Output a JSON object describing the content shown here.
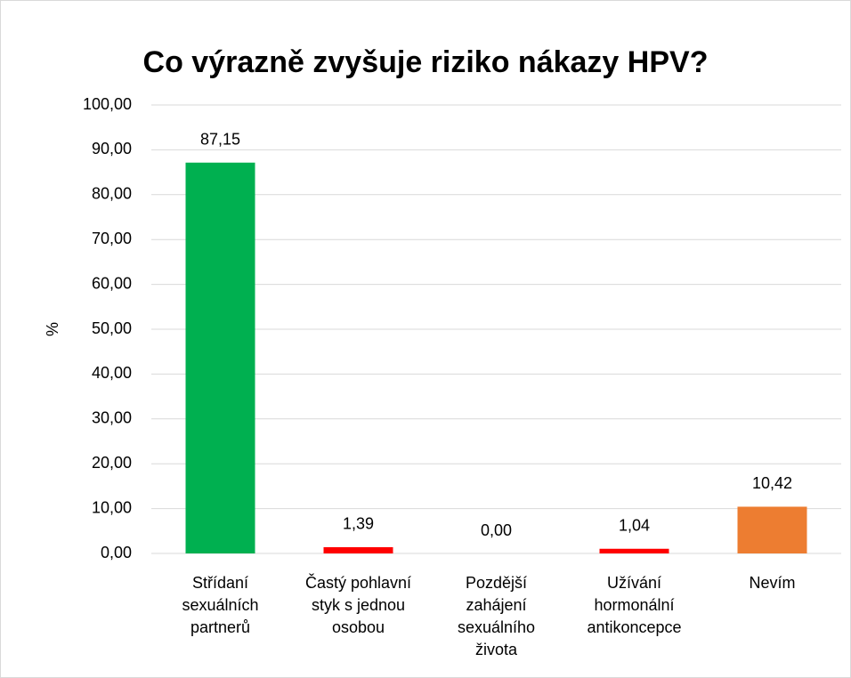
{
  "chart_data": {
    "type": "bar",
    "title": "Co výrazně zvyšuje riziko nákazy HPV?",
    "y_label": "%",
    "categories": [
      "Střídaní\nsexuálních\npartnerů",
      "Častý pohlavní\nstyk s jednou\nosobou",
      "Pozdější\nzahájení\nsexuálního\nživota",
      "Užívání\nhormonální\nantikoncepce",
      "Nevím"
    ],
    "values": [
      87.15,
      1.39,
      0,
      1.04,
      10.42
    ],
    "value_labels": [
      "87,15",
      "1,39",
      "0,00",
      "1,04",
      "10,42"
    ],
    "colors": [
      "#00b050",
      "#ff0000",
      "#ff0000",
      "#ff0000",
      "#ed7d31"
    ],
    "ylim": [
      0,
      100
    ],
    "yticks": [
      {
        "value": 0,
        "label": "0,00"
      },
      {
        "value": 10,
        "label": "10,00"
      },
      {
        "value": 20,
        "label": "20,00"
      },
      {
        "value": 30,
        "label": "30,00"
      },
      {
        "value": 40,
        "label": "40,00"
      },
      {
        "value": 50,
        "label": "50,00"
      },
      {
        "value": 60,
        "label": "60,00"
      },
      {
        "value": 70,
        "label": "70,00"
      },
      {
        "value": 80,
        "label": "80,00"
      },
      {
        "value": 90,
        "label": "90,00"
      },
      {
        "value": 100,
        "label": "100,00"
      }
    ],
    "grid": true
  }
}
